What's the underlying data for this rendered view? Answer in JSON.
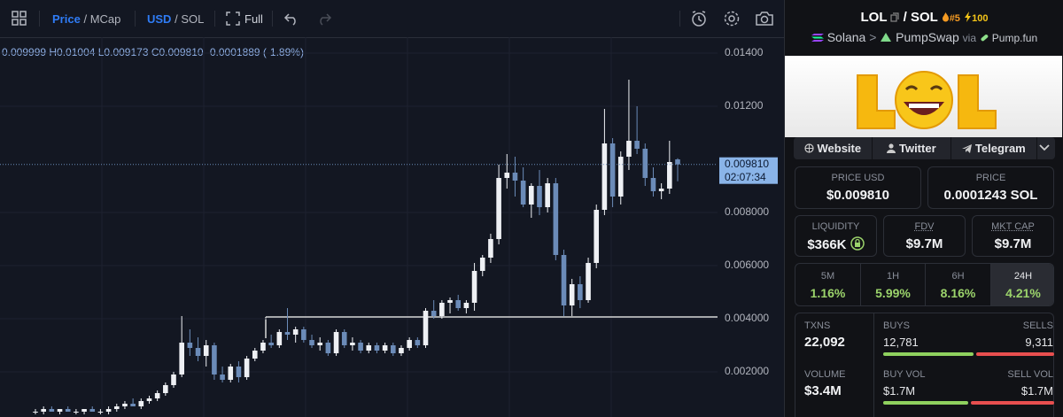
{
  "toolbar": {
    "price": "Price",
    "sep1": "/",
    "mcap": "MCap",
    "usd": "USD",
    "sep2": "/",
    "sol": "SOL",
    "full": "Full"
  },
  "ohlc": "0.009999 H0.01004 L0.009173 C0.009810 -0.0001889 (-1.89%)",
  "chart": {
    "type": "candlestick",
    "ylim": [
      0.0003,
      0.0146
    ],
    "yticks": [
      {
        "value": 0.014,
        "label": "0.01400"
      },
      {
        "value": 0.012,
        "label": "0.01200"
      },
      {
        "value": 0.008,
        "label": "0.008000"
      },
      {
        "value": 0.006,
        "label": "0.006000"
      },
      {
        "value": 0.004,
        "label": "0.004000"
      },
      {
        "value": 0.002,
        "label": "0.002000"
      }
    ],
    "up_color": "#eef0f4",
    "down_color": "#6b8bb8",
    "last_price_label": "0.009810",
    "countdown": "02:07:34",
    "candles": [
      [
        0.0005,
        0.0006,
        0.0004,
        0.0005
      ],
      [
        0.0005,
        0.0007,
        0.0004,
        0.0006
      ],
      [
        0.0006,
        0.0007,
        0.0005,
        0.0005
      ],
      [
        0.0005,
        0.0006,
        0.0004,
        0.0006
      ],
      [
        0.0006,
        0.0007,
        0.0005,
        0.0005
      ],
      [
        0.0005,
        0.0006,
        0.0004,
        0.0005
      ],
      [
        0.0005,
        0.0006,
        0.0004,
        0.0006
      ],
      [
        0.0006,
        0.0007,
        0.0005,
        0.0005
      ],
      [
        0.0005,
        0.0006,
        0.0004,
        0.0005
      ],
      [
        0.0005,
        0.0007,
        0.0004,
        0.0006
      ],
      [
        0.0006,
        0.0008,
        0.0005,
        0.0007
      ],
      [
        0.0007,
        0.0009,
        0.0006,
        0.0008
      ],
      [
        0.0008,
        0.001,
        0.0007,
        0.0007
      ],
      [
        0.0007,
        0.001,
        0.0006,
        0.0009
      ],
      [
        0.0009,
        0.0011,
        0.0008,
        0.001
      ],
      [
        0.001,
        0.0013,
        0.0009,
        0.0012
      ],
      [
        0.0012,
        0.0016,
        0.0011,
        0.0015
      ],
      [
        0.0015,
        0.002,
        0.0014,
        0.0019
      ],
      [
        0.0019,
        0.0041,
        0.0018,
        0.0031
      ],
      [
        0.0031,
        0.0036,
        0.0026,
        0.0029
      ],
      [
        0.0029,
        0.0033,
        0.0024,
        0.0026
      ],
      [
        0.0026,
        0.0032,
        0.0022,
        0.003
      ],
      [
        0.003,
        0.0031,
        0.0017,
        0.0019
      ],
      [
        0.0019,
        0.0022,
        0.0016,
        0.0017
      ],
      [
        0.0017,
        0.0023,
        0.0016,
        0.0022
      ],
      [
        0.0022,
        0.0024,
        0.0016,
        0.0018
      ],
      [
        0.0018,
        0.0026,
        0.0017,
        0.0025
      ],
      [
        0.0025,
        0.0029,
        0.0024,
        0.0028
      ],
      [
        0.0028,
        0.0032,
        0.0027,
        0.0031
      ],
      [
        0.0031,
        0.0034,
        0.0029,
        0.003
      ],
      [
        0.003,
        0.0036,
        0.0029,
        0.0035
      ],
      [
        0.0035,
        0.0044,
        0.0032,
        0.0034
      ],
      [
        0.0034,
        0.0037,
        0.0031,
        0.0036
      ],
      [
        0.0036,
        0.0037,
        0.0031,
        0.0032
      ],
      [
        0.0032,
        0.0034,
        0.0029,
        0.003
      ],
      [
        0.003,
        0.0033,
        0.0028,
        0.0031
      ],
      [
        0.0031,
        0.0032,
        0.0026,
        0.0027
      ],
      [
        0.0027,
        0.0036,
        0.0026,
        0.0035
      ],
      [
        0.0035,
        0.0036,
        0.0029,
        0.003
      ],
      [
        0.003,
        0.0033,
        0.0028,
        0.0031
      ],
      [
        0.0031,
        0.0032,
        0.0027,
        0.0028
      ],
      [
        0.0028,
        0.0031,
        0.0027,
        0.003
      ],
      [
        0.003,
        0.0031,
        0.0027,
        0.0028
      ],
      [
        0.0028,
        0.0031,
        0.0027,
        0.003
      ],
      [
        0.003,
        0.0031,
        0.0026,
        0.0027
      ],
      [
        0.0027,
        0.003,
        0.0026,
        0.0029
      ],
      [
        0.0029,
        0.0033,
        0.0028,
        0.0032
      ],
      [
        0.0032,
        0.0033,
        0.0029,
        0.003
      ],
      [
        0.003,
        0.0044,
        0.0029,
        0.0043
      ],
      [
        0.0043,
        0.0047,
        0.004,
        0.0041
      ],
      [
        0.0041,
        0.0047,
        0.004,
        0.0046
      ],
      [
        0.0046,
        0.0048,
        0.0042,
        0.0047
      ],
      [
        0.0047,
        0.0049,
        0.0043,
        0.0044
      ],
      [
        0.0044,
        0.0047,
        0.0042,
        0.0046
      ],
      [
        0.0046,
        0.0061,
        0.0043,
        0.0058
      ],
      [
        0.0058,
        0.0064,
        0.0056,
        0.0063
      ],
      [
        0.0063,
        0.0072,
        0.0061,
        0.007
      ],
      [
        0.007,
        0.0098,
        0.0068,
        0.0093
      ],
      [
        0.0093,
        0.0102,
        0.0089,
        0.0095
      ],
      [
        0.0095,
        0.0101,
        0.0086,
        0.0092
      ],
      [
        0.0092,
        0.0097,
        0.0082,
        0.0083
      ],
      [
        0.0083,
        0.0091,
        0.0078,
        0.009
      ],
      [
        0.009,
        0.0096,
        0.0079,
        0.0082
      ],
      [
        0.0082,
        0.0093,
        0.008,
        0.0091
      ],
      [
        0.0091,
        0.0093,
        0.0062,
        0.0064
      ],
      [
        0.0064,
        0.0066,
        0.0041,
        0.0045
      ],
      [
        0.0045,
        0.0055,
        0.0041,
        0.0053
      ],
      [
        0.0053,
        0.0056,
        0.0044,
        0.0047
      ],
      [
        0.0047,
        0.0063,
        0.0046,
        0.0061
      ],
      [
        0.0061,
        0.0083,
        0.0059,
        0.0081
      ],
      [
        0.0081,
        0.0119,
        0.0079,
        0.0106
      ],
      [
        0.0106,
        0.0108,
        0.0082,
        0.0086
      ],
      [
        0.0086,
        0.0103,
        0.0083,
        0.0101
      ],
      [
        0.0101,
        0.013,
        0.0096,
        0.0107
      ],
      [
        0.0107,
        0.012,
        0.0102,
        0.0104
      ],
      [
        0.0104,
        0.0106,
        0.009,
        0.0093
      ],
      [
        0.0093,
        0.0097,
        0.0086,
        0.0088
      ],
      [
        0.0088,
        0.0091,
        0.0085,
        0.0089
      ],
      [
        0.0089,
        0.0107,
        0.0087,
        0.0099
      ],
      [
        0.009999,
        0.01004,
        0.009173,
        0.00981
      ]
    ]
  },
  "pair": {
    "base": "LOL",
    "sep": "/",
    "quote": "SOL",
    "rank": "#5",
    "boosts": "100"
  },
  "route": {
    "chain": "Solana",
    "arrow": ">",
    "dex": "PumpSwap",
    "via": "via",
    "launchpad": "Pump.fun"
  },
  "links": [
    "Website",
    "Twitter",
    "Telegram"
  ],
  "price_usd": {
    "label": "PRICE USD",
    "value": "$0.009810"
  },
  "price_native": {
    "label": "PRICE",
    "value": "0.0001243 SOL"
  },
  "metrics": [
    {
      "label": "LIQUIDITY",
      "value": "$366K"
    },
    {
      "label": "FDV",
      "value": "$9.7M"
    },
    {
      "label": "MKT CAP",
      "value": "$9.7M"
    }
  ],
  "changes": [
    {
      "period": "5M",
      "value": "1.16%"
    },
    {
      "period": "1H",
      "value": "5.99%"
    },
    {
      "period": "6H",
      "value": "8.16%"
    },
    {
      "period": "24H",
      "value": "4.21%"
    }
  ],
  "stats": {
    "txns": {
      "label": "TXNS",
      "value": "22,092"
    },
    "buys": {
      "label": "BUYS",
      "value": "12,781"
    },
    "sells": {
      "label": "SELLS",
      "value": "9,311"
    },
    "volume": {
      "label": "VOLUME",
      "value": "$3.4M"
    },
    "buy_vol": {
      "label": "BUY VOL",
      "value": "$1.7M"
    },
    "sell_vol": {
      "label": "SELL VOL",
      "value": "$1.7M"
    }
  }
}
